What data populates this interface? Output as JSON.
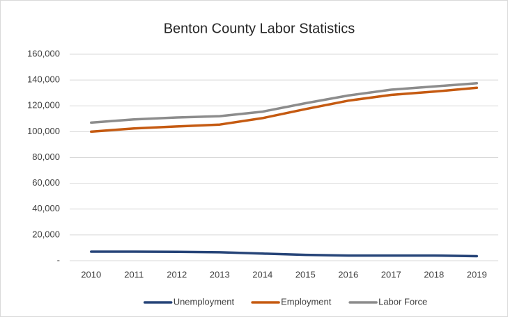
{
  "chart_data": {
    "type": "line",
    "title": "Benton County Labor Statistics",
    "categories": [
      "2010",
      "2011",
      "2012",
      "2013",
      "2014",
      "2015",
      "2016",
      "2017",
      "2018",
      "2019"
    ],
    "series": [
      {
        "name": "Unemployment",
        "color": "#264478",
        "values": [
          7000,
          7000,
          6900,
          6500,
          5500,
          4500,
          4000,
          4000,
          4000,
          3500
        ]
      },
      {
        "name": "Employment",
        "color": "#c55a11",
        "values": [
          100000,
          102500,
          104000,
          105500,
          110500,
          117500,
          124000,
          128500,
          131000,
          134000
        ]
      },
      {
        "name": "Labor Force",
        "color": "#8c8c8c",
        "values": [
          107000,
          109500,
          111000,
          112000,
          115500,
          122000,
          128000,
          132500,
          135000,
          137500
        ]
      }
    ],
    "ylim": [
      0,
      160000
    ],
    "yticks": [
      {
        "value": 0,
        "label": "-"
      },
      {
        "value": 20000,
        "label": "20,000"
      },
      {
        "value": 40000,
        "label": "40,000"
      },
      {
        "value": 60000,
        "label": "60,000"
      },
      {
        "value": 80000,
        "label": "80,000"
      },
      {
        "value": 100000,
        "label": "100,000"
      },
      {
        "value": 120000,
        "label": "120,000"
      },
      {
        "value": 140000,
        "label": "140,000"
      },
      {
        "value": 160000,
        "label": "160,000"
      }
    ],
    "grid": true,
    "legend": "bottom"
  }
}
